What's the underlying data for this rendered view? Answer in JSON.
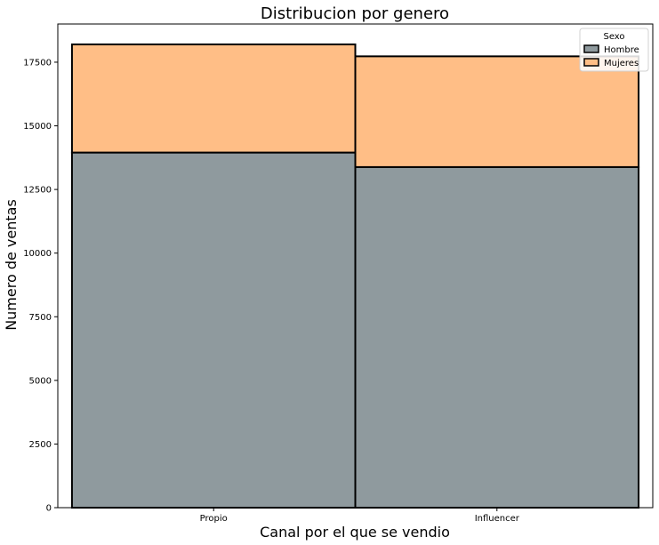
{
  "chart_data": {
    "type": "bar",
    "stacked": true,
    "title": "Distribucion por genero",
    "xlabel": "Canal por el que se vendio",
    "ylabel": "Numero de ventas",
    "categories": [
      "Propio",
      "Influencer"
    ],
    "ylim": [
      0,
      19000
    ],
    "yticks": [
      0,
      2500,
      5000,
      7500,
      10000,
      12500,
      15000,
      17500
    ],
    "grid": false,
    "legend": {
      "title": "Sexo",
      "placement": "top-right"
    },
    "series": [
      {
        "name": "Hombre",
        "color": "#8f9a9e",
        "values": [
          13950,
          13380
        ]
      },
      {
        "name": "Mujeres",
        "color": "#ffbe86",
        "values": [
          4250,
          4350
        ]
      }
    ]
  }
}
